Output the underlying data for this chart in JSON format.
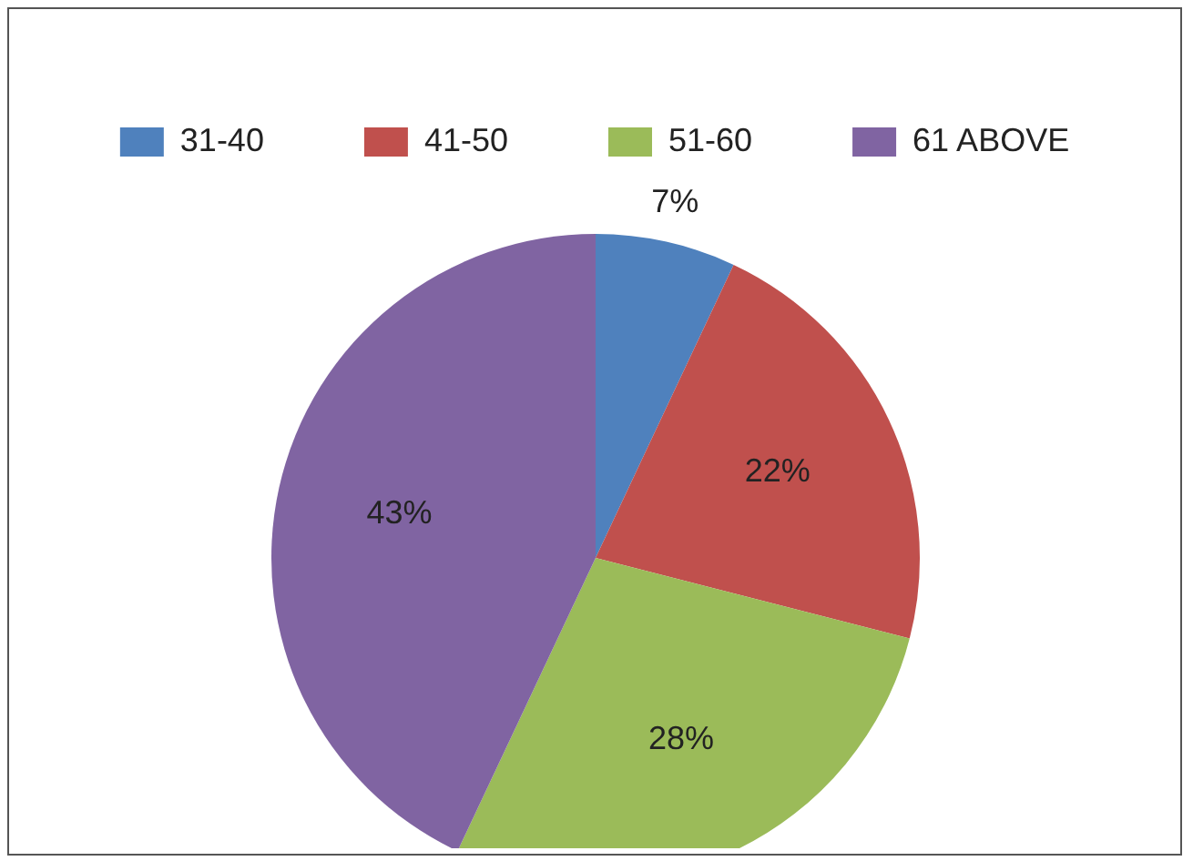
{
  "chart_data": {
    "type": "pie",
    "categories": [
      "31-40",
      "41-50",
      "51-60",
      "61 ABOVE"
    ],
    "values": [
      7,
      22,
      28,
      43
    ],
    "value_labels": [
      "7%",
      "22%",
      "28%",
      "43%"
    ],
    "colors": [
      "#4f81bd",
      "#c0504d",
      "#9bbb59",
      "#8064a2"
    ],
    "legend": "top"
  }
}
